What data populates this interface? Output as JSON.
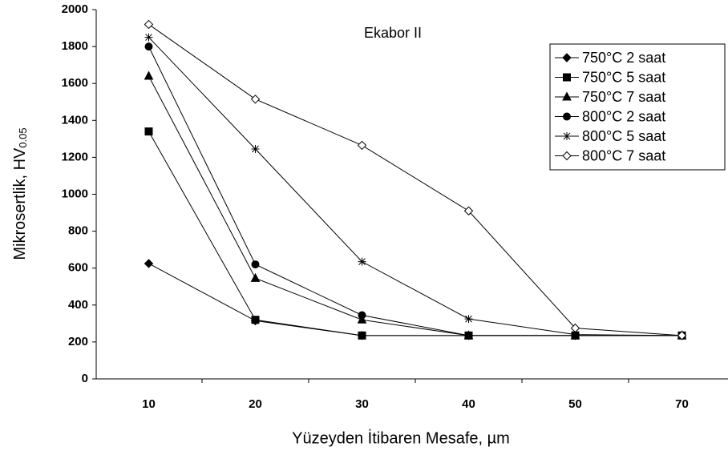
{
  "chart_data": {
    "type": "line",
    "annotation": "Ekabor II",
    "x_label": "Yüzeyden İtibaren Mesafe, µm",
    "y_label": "Mikrosertlik, HV",
    "y_label_sub": "0.05",
    "categories": [
      "10",
      "20",
      "30",
      "40",
      "50",
      "70"
    ],
    "ylim": [
      0,
      2000
    ],
    "yticks": [
      0,
      200,
      400,
      600,
      800,
      1000,
      1200,
      1400,
      1600,
      1800,
      2000
    ],
    "legend": "top-right",
    "series": [
      {
        "name": "750°C 2 saat",
        "color": "#000000",
        "marker": "diamond",
        "values": [
          625,
          315,
          235,
          235,
          235,
          235
        ]
      },
      {
        "name": "750°C 5 saat",
        "color": "#000000",
        "marker": "square",
        "values": [
          1340,
          320,
          235,
          235,
          235,
          235
        ]
      },
      {
        "name": "750°C 7 saat",
        "color": "#000000",
        "marker": "triangle",
        "values": [
          1640,
          545,
          320,
          235,
          235,
          235
        ]
      },
      {
        "name": "800°C 2 saat",
        "color": "#000000",
        "marker": "circle",
        "values": [
          1800,
          620,
          345,
          235,
          235,
          235
        ]
      },
      {
        "name": "800°C 5 saat",
        "color": "#000000",
        "marker": "star",
        "values": [
          1850,
          1245,
          635,
          325,
          240,
          235
        ]
      },
      {
        "name": "800°C 7 saat",
        "color": "#000000",
        "marker": "diamond-open",
        "values": [
          1920,
          1515,
          1265,
          910,
          275,
          235
        ]
      }
    ]
  }
}
